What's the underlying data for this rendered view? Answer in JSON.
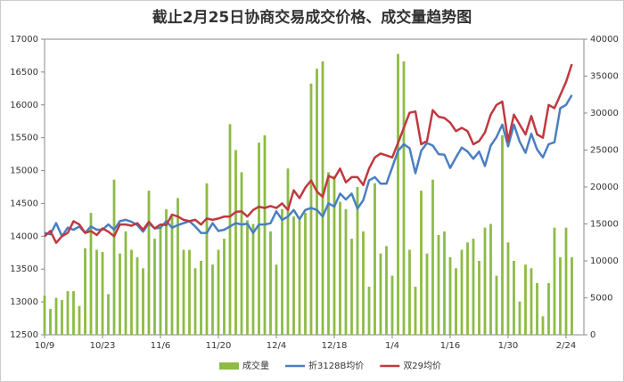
{
  "chart_data": {
    "type": "bar-line",
    "title": "截止2月25日协商交易成交价格、成交量趋势图",
    "categories": [
      "10/9",
      null,
      null,
      null,
      null,
      null,
      null,
      null,
      null,
      null,
      "10/23",
      null,
      null,
      null,
      null,
      null,
      null,
      null,
      null,
      null,
      "11/6",
      null,
      null,
      null,
      null,
      null,
      null,
      null,
      null,
      null,
      "11/20",
      null,
      null,
      null,
      null,
      null,
      null,
      null,
      null,
      null,
      "12/4",
      null,
      null,
      null,
      null,
      null,
      null,
      null,
      null,
      null,
      "12/18",
      null,
      null,
      null,
      null,
      null,
      null,
      null,
      null,
      null,
      "1/4",
      null,
      null,
      null,
      null,
      null,
      null,
      null,
      null,
      null,
      "1/16",
      null,
      null,
      null,
      null,
      null,
      null,
      null,
      null,
      null,
      "1/30",
      null,
      null,
      null,
      null,
      null,
      null,
      null,
      null,
      null,
      "2/24",
      null
    ],
    "series": [
      {
        "name": "成交量",
        "type": "bar",
        "axis": "y2",
        "color": "#8dbb46",
        "values": [
          5300,
          3500,
          5000,
          4700,
          5900,
          5900,
          3900,
          11700,
          16500,
          11500,
          11200,
          5500,
          21000,
          11000,
          14000,
          11500,
          10500,
          9000,
          19500,
          13000,
          14500,
          17000,
          16000,
          18500,
          11500,
          11500,
          9000,
          10000,
          20500,
          9500,
          11500,
          13000,
          28500,
          25000,
          22000,
          15500,
          15000,
          26000,
          27000,
          14000,
          9500,
          17000,
          22500,
          16000,
          15500,
          16500,
          34000,
          36000,
          37000,
          22000,
          21500,
          18000,
          17000,
          13000,
          20000,
          14000,
          6500,
          20500,
          11000,
          12000,
          8000,
          38000,
          37000,
          11500,
          6500,
          19500,
          11000,
          21000,
          13500,
          14000,
          10500,
          9000,
          11500,
          12500,
          13000,
          10000,
          14500,
          15000,
          8000,
          27000,
          12500,
          10000,
          4500,
          9500,
          9000,
          7000,
          2500,
          7000,
          14500,
          10500,
          14500,
          10500
        ]
      },
      {
        "name": "折3128B均价",
        "type": "line",
        "color": "#4a7fc1",
        "values": [
          14050,
          14030,
          14200,
          14000,
          14130,
          14100,
          14150,
          14050,
          14150,
          14100,
          14100,
          14180,
          14100,
          14230,
          14250,
          14220,
          14170,
          14070,
          14200,
          14120,
          14130,
          14230,
          14130,
          14170,
          14200,
          14230,
          14150,
          14050,
          14050,
          14200,
          14080,
          14100,
          14150,
          14200,
          14180,
          14190,
          14050,
          14180,
          14180,
          14200,
          14380,
          14250,
          14300,
          14400,
          14260,
          14400,
          14430,
          14400,
          14300,
          14500,
          14450,
          14650,
          14560,
          14650,
          14420,
          14550,
          14850,
          14900,
          14800,
          14800,
          15050,
          15300,
          15400,
          15340,
          14960,
          15300,
          15420,
          15380,
          15250,
          15240,
          15040,
          15200,
          15350,
          15290,
          15180,
          15290,
          15070,
          15380,
          15510,
          15700,
          15370,
          15700,
          15440,
          15270,
          15560,
          15320,
          15200,
          15400,
          15430,
          15950,
          16000,
          16150
        ]
      },
      {
        "name": "双29均价",
        "type": "line",
        "color": "#c0393f",
        "values": [
          14000,
          14080,
          13900,
          14000,
          14050,
          14230,
          14180,
          14050,
          14080,
          14020,
          14120,
          14070,
          14000,
          14180,
          14180,
          14160,
          14200,
          14100,
          14220,
          14120,
          14180,
          14170,
          14330,
          14300,
          14250,
          14230,
          14250,
          14180,
          14270,
          14250,
          14270,
          14300,
          14300,
          14370,
          14380,
          14300,
          14400,
          14450,
          14430,
          14460,
          14430,
          14500,
          14400,
          14700,
          14580,
          14740,
          14850,
          14680,
          14600,
          14920,
          14880,
          15030,
          14820,
          14900,
          14900,
          14780,
          15030,
          15200,
          15260,
          15230,
          15200,
          15420,
          15650,
          15880,
          15900,
          15400,
          15450,
          15920,
          15820,
          15800,
          15730,
          15600,
          15650,
          15600,
          15400,
          15450,
          15580,
          15850,
          16000,
          16050,
          15450,
          15850,
          15700,
          15550,
          15830,
          15550,
          15500,
          16000,
          15950,
          16150,
          16350,
          16620
        ]
      }
    ],
    "ylim": [
      12500,
      17000
    ],
    "yticks": [
      12500,
      13000,
      13500,
      14000,
      14500,
      15000,
      15500,
      16000,
      16500,
      17000
    ],
    "y2lim": [
      0,
      40000
    ],
    "y2ticks": [
      0,
      5000,
      10000,
      15000,
      20000,
      25000,
      30000,
      35000,
      40000
    ],
    "legend": "bottom"
  }
}
